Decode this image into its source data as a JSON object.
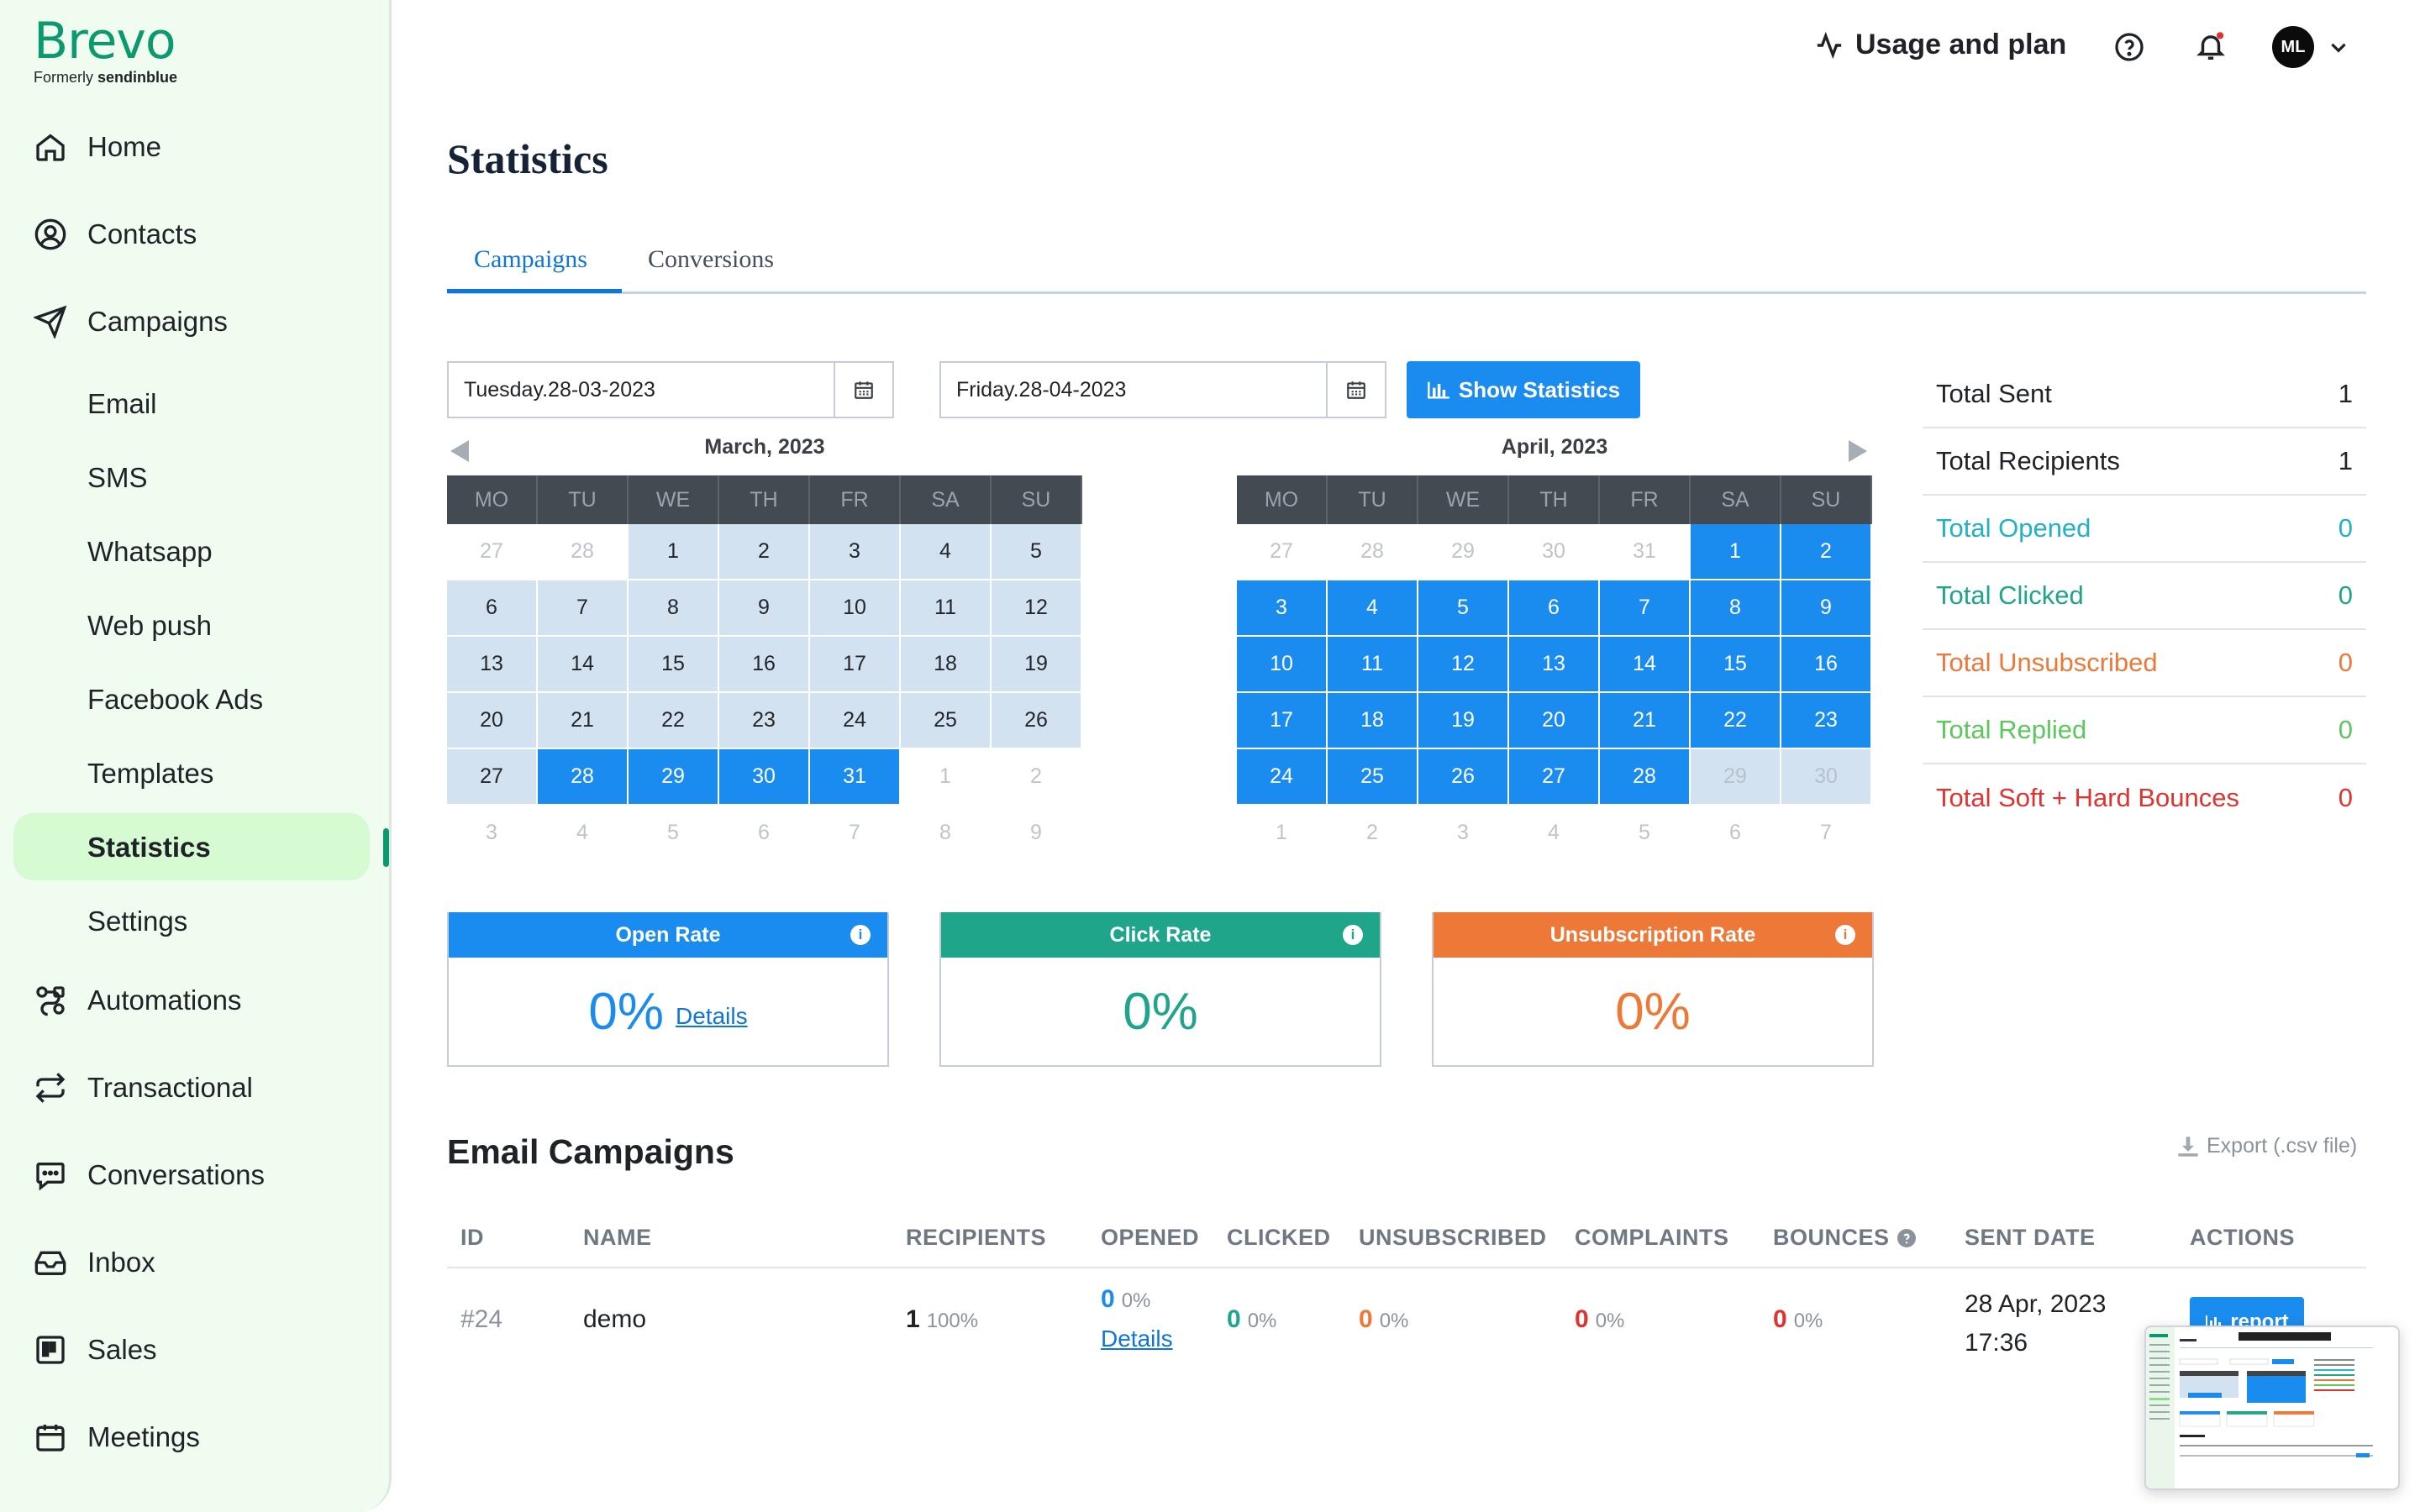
{
  "brand": {
    "name": "Brevo",
    "sub_prefix": "Formerly",
    "sub_brand": "sendinblue"
  },
  "sidebar": {
    "items": [
      {
        "label": "Home",
        "icon": "home-icon"
      },
      {
        "label": "Contacts",
        "icon": "contacts-icon"
      },
      {
        "label": "Campaigns",
        "icon": "send-icon"
      },
      {
        "label": "Automations",
        "icon": "automations-icon"
      },
      {
        "label": "Transactional",
        "icon": "transactional-icon"
      },
      {
        "label": "Conversations",
        "icon": "chat-icon"
      },
      {
        "label": "Inbox",
        "icon": "inbox-icon"
      },
      {
        "label": "Sales",
        "icon": "sales-icon"
      },
      {
        "label": "Meetings",
        "icon": "calendar-icon"
      }
    ],
    "campaign_subitems": [
      "Email",
      "SMS",
      "Whatsapp",
      "Web push",
      "Facebook Ads",
      "Templates",
      "Statistics",
      "Settings"
    ],
    "active_item": "Statistics"
  },
  "topbar": {
    "usage_label": "Usage and plan",
    "avatar_initials": "ML"
  },
  "page": {
    "title": "Statistics"
  },
  "tabs": [
    {
      "label": "Campaigns",
      "active": true
    },
    {
      "label": "Conversions",
      "active": false
    }
  ],
  "date_range": {
    "start": "Tuesday.28-03-2023",
    "end": "Friday.28-04-2023",
    "show_button": "Show Statistics"
  },
  "calendars": {
    "weekdays": [
      "MO",
      "TU",
      "WE",
      "TH",
      "FR",
      "SA",
      "SU"
    ],
    "left_title": "March, 2023",
    "right_title": "April, 2023"
  },
  "stats": [
    {
      "label": "Total Sent",
      "value": "1",
      "color": "#1f2328"
    },
    {
      "label": "Total Recipients",
      "value": "1",
      "color": "#1f2328"
    },
    {
      "label": "Total Opened",
      "value": "0",
      "color": "#1fb3c4"
    },
    {
      "label": "Total Clicked",
      "value": "0",
      "color": "#1ea58a"
    },
    {
      "label": "Total Unsubscribed",
      "value": "0",
      "color": "#ee7837"
    },
    {
      "label": "Total Replied",
      "value": "0",
      "color": "#5ac85a"
    },
    {
      "label": "Total Soft + Hard Bounces",
      "value": "0",
      "color": "#e0332f"
    }
  ],
  "rates": [
    {
      "title": "Open Rate",
      "value": "0%",
      "link": "Details",
      "color": "#1a8cf0"
    },
    {
      "title": "Click Rate",
      "value": "0%",
      "color": "#1ea58a"
    },
    {
      "title": "Unsubscription Rate",
      "value": "0%",
      "color": "#ee7837"
    }
  ],
  "email_campaigns": {
    "title": "Email Campaigns",
    "export_label": "Export (.csv file)",
    "columns": [
      "ID",
      "NAME",
      "RECIPIENTS",
      "OPENED",
      "CLICKED",
      "UNSUBSCRIBED",
      "COMPLAINTS",
      "BOUNCES",
      "SENT DATE",
      "ACTIONS"
    ],
    "rows": [
      {
        "id": "#24",
        "name": "demo",
        "recipients": "1",
        "recipients_pct": "100%",
        "opened": "0",
        "opened_pct": "0%",
        "opened_link": "Details",
        "clicked": "0",
        "clicked_pct": "0%",
        "unsubscribed": "0",
        "unsubscribed_pct": "0%",
        "complaints": "0",
        "complaints_pct": "0%",
        "bounces": "0",
        "bounces_pct": "0%",
        "sent_date": "28 Apr, 2023",
        "sent_time": "17:36",
        "action": "report"
      }
    ]
  }
}
